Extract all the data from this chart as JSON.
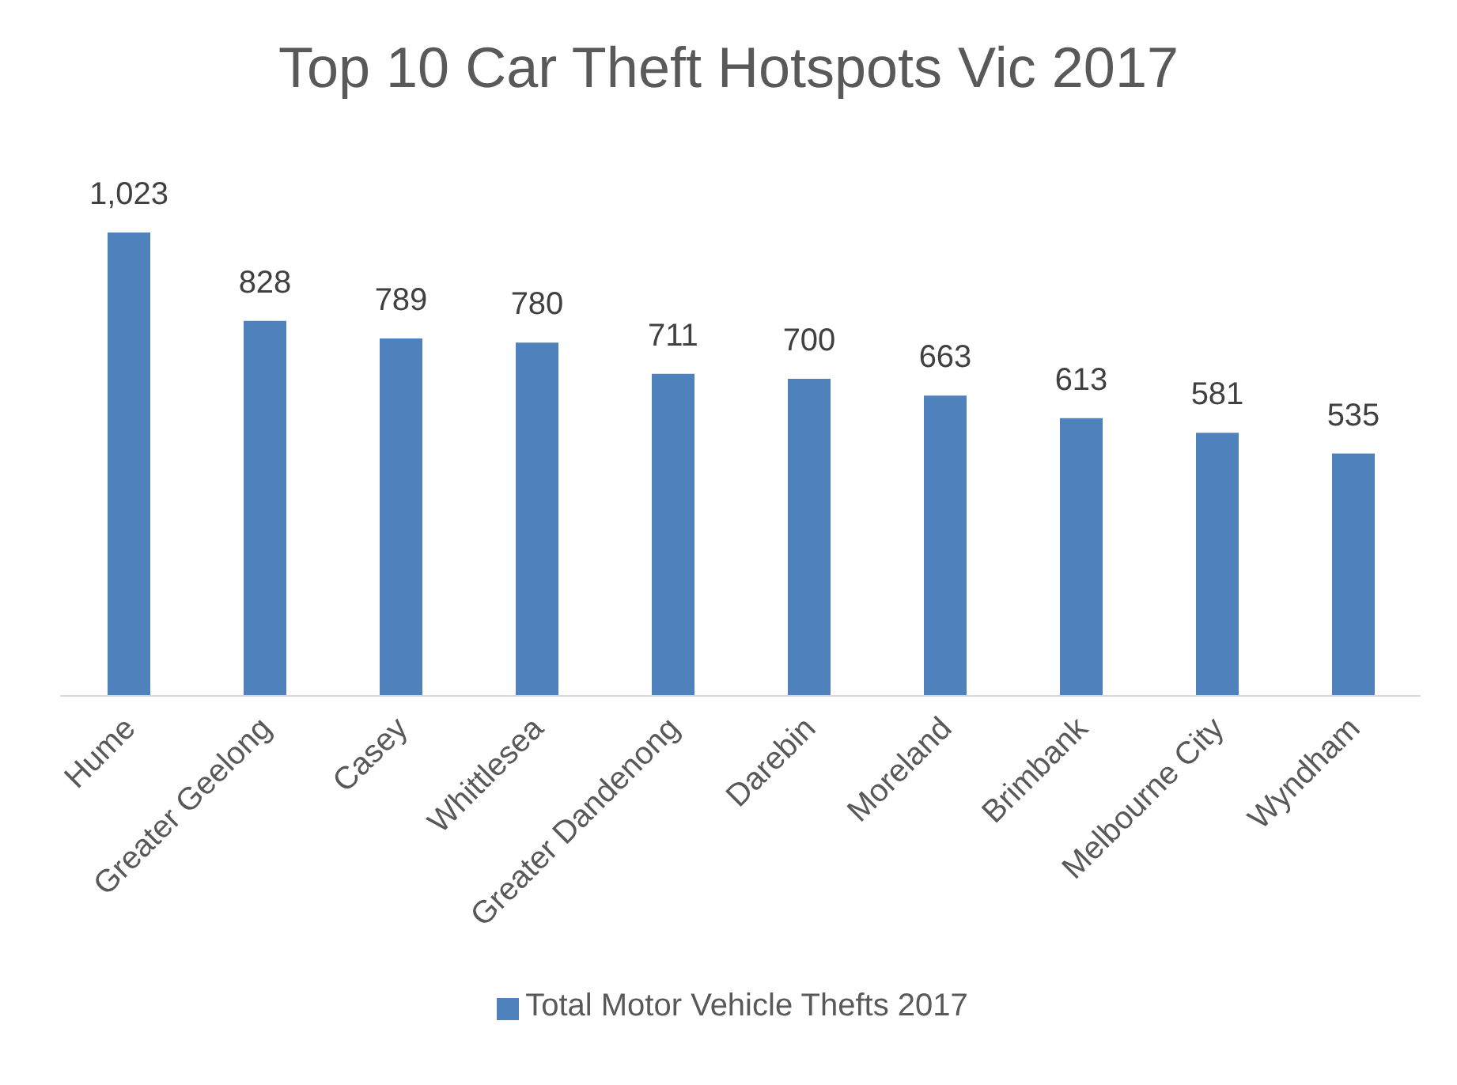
{
  "chart_data": {
    "type": "bar",
    "title": "Top 10 Car Theft Hotspots Vic 2017",
    "categories": [
      "Hume",
      "Greater Geelong",
      "Casey",
      "Whittlesea",
      "Greater Dandenong",
      "Darebin",
      "Moreland",
      "Brimbank",
      "Melbourne City",
      "Wyndham"
    ],
    "series": [
      {
        "name": "Total Motor Vehicle Thefts 2017",
        "color": "#4f81bd",
        "values": [
          1023,
          828,
          789,
          780,
          711,
          700,
          663,
          613,
          581,
          535
        ],
        "value_labels": [
          "1,023",
          "828",
          "789",
          "780",
          "711",
          "700",
          "663",
          "613",
          "581",
          "535"
        ]
      }
    ],
    "legend": "bottom",
    "grid": false
  }
}
